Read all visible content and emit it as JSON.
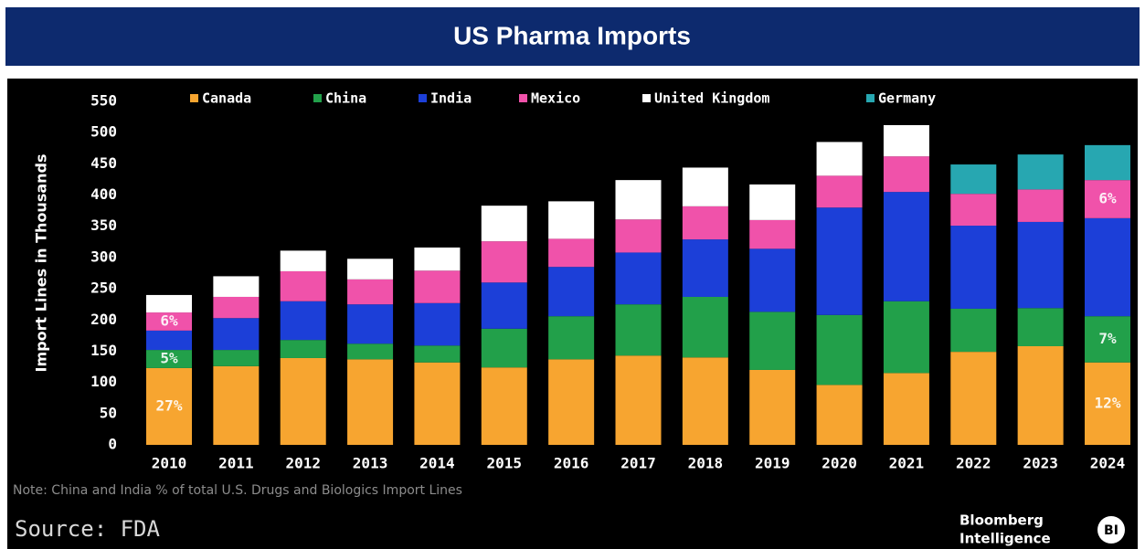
{
  "chart_data": {
    "type": "stacked_bar",
    "title": "US Pharma Imports",
    "y_label": "Import Lines in Thousands",
    "note": "Note: China and India % of total U.S. Drugs and Biologics Import Lines",
    "source": "Source: FDA",
    "brand": [
      "Bloomberg",
      "Intelligence"
    ],
    "brand_mark": "BI",
    "categories": [
      "2010",
      "2011",
      "2012",
      "2013",
      "2014",
      "2015",
      "2016",
      "2017",
      "2018",
      "2019",
      "2020",
      "2021",
      "2022",
      "2023",
      "2024"
    ],
    "series": [
      {
        "name": "Canada",
        "color": "#f7a530",
        "values": [
          123,
          126,
          139,
          137,
          132,
          124,
          137,
          143,
          140,
          120,
          96,
          115,
          149,
          158,
          132
        ]
      },
      {
        "name": "China",
        "color": "#22a04a",
        "values": [
          29,
          26,
          29,
          25,
          27,
          62,
          69,
          82,
          97,
          93,
          112,
          115,
          69,
          61,
          74
        ]
      },
      {
        "name": "India",
        "color": "#1c3fd8",
        "values": [
          31,
          51,
          62,
          63,
          68,
          74,
          79,
          83,
          92,
          101,
          172,
          175,
          133,
          138,
          157
        ]
      },
      {
        "name": "Mexico",
        "color": "#f052aa",
        "values": [
          29,
          34,
          48,
          40,
          52,
          66,
          45,
          53,
          53,
          46,
          51,
          57,
          51,
          52,
          61
        ]
      },
      {
        "name": "United Kingdom",
        "color": "#ffffff",
        "values": [
          28,
          33,
          33,
          33,
          37,
          57,
          60,
          63,
          62,
          57,
          54,
          50,
          null,
          null,
          null
        ]
      },
      {
        "name": "Germany",
        "color": "#27a7b1",
        "values": [
          null,
          null,
          null,
          null,
          null,
          null,
          null,
          null,
          null,
          null,
          null,
          null,
          47,
          56,
          56
        ]
      }
    ],
    "annotations": [
      {
        "text": "27%",
        "category": "2010",
        "series": "Canada"
      },
      {
        "text": "5%",
        "category": "2010",
        "series": "China"
      },
      {
        "text": "6%",
        "category": "2010",
        "series": "Mexico"
      },
      {
        "text": "12%",
        "category": "2024",
        "series": "Canada"
      },
      {
        "text": "7%",
        "category": "2024",
        "series": "China"
      },
      {
        "text": "6%",
        "category": "2024",
        "series": "Mexico"
      }
    ],
    "ylim": [
      0,
      550
    ],
    "yticks": [
      0,
      50,
      100,
      150,
      200,
      250,
      300,
      350,
      400,
      450,
      500,
      550
    ],
    "grid": false,
    "legend": "top"
  }
}
